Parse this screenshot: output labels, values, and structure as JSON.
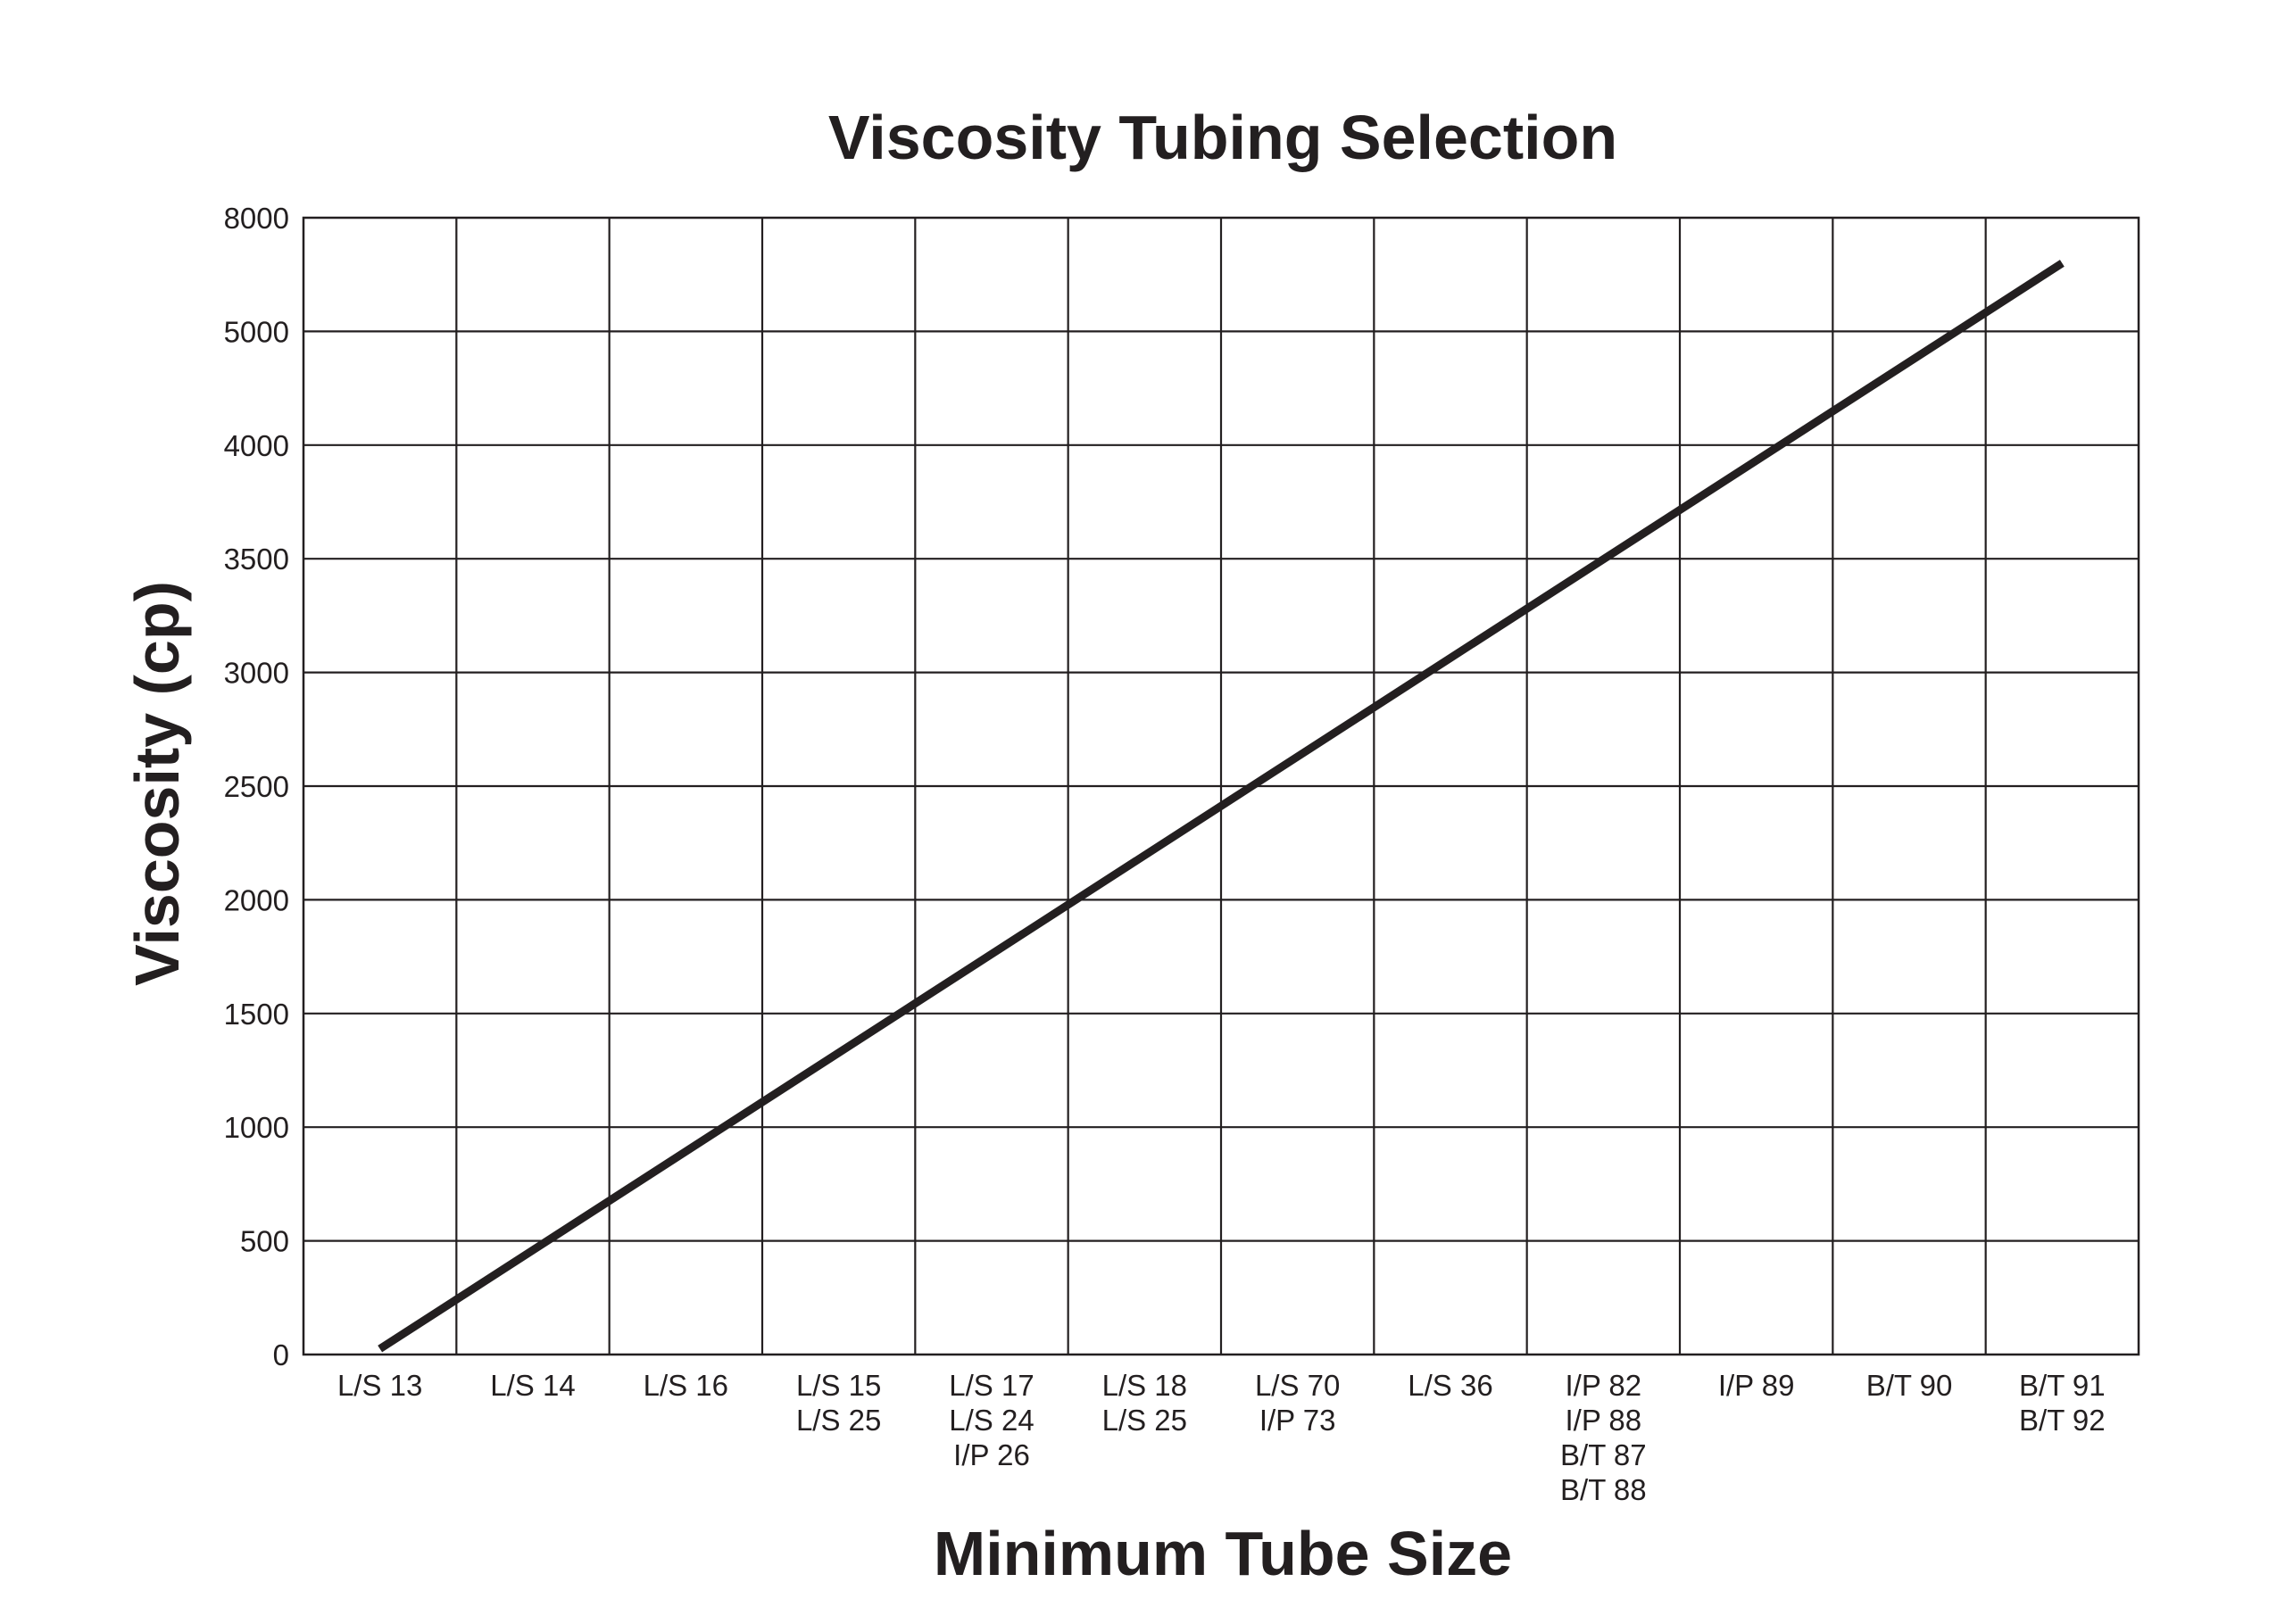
{
  "chart_data": {
    "type": "line",
    "title": "Viscosity Tubing Selection",
    "xlabel": "Minimum Tube Size",
    "ylabel": "Viscosity (cp)",
    "categories": [
      [
        "L/S 13"
      ],
      [
        "L/S 14"
      ],
      [
        "L/S 16"
      ],
      [
        "L/S 15",
        "L/S 25"
      ],
      [
        "L/S 17",
        "L/S 24",
        "I/P 26"
      ],
      [
        "L/S 18",
        "L/S 25"
      ],
      [
        "L/S 70",
        "I/P 73"
      ],
      [
        "L/S 36"
      ],
      [
        "I/P 82",
        "I/P 88",
        "B/T 87",
        "B/T 88"
      ],
      [
        "I/P 89"
      ],
      [
        "B/T 90"
      ],
      [
        "B/T 91",
        "B/T 92"
      ]
    ],
    "y_ticks": [
      "0",
      "500",
      "1000",
      "1500",
      "2000",
      "2500",
      "3000",
      "3500",
      "4000",
      "5000",
      "8000"
    ],
    "grid": true,
    "legend": "none",
    "line_color": "#231f20",
    "series": [
      {
        "x_start": "L/S 13",
        "y_start_tick_units": 0.05,
        "x_end": "B/T 91 / B/T 92",
        "y_end_tick_units": 9.6,
        "note_scale": "y-axis tick labels are unevenly spaced (…4000, 5000, 8000); line is straight across the gridded tick positions"
      }
    ]
  }
}
